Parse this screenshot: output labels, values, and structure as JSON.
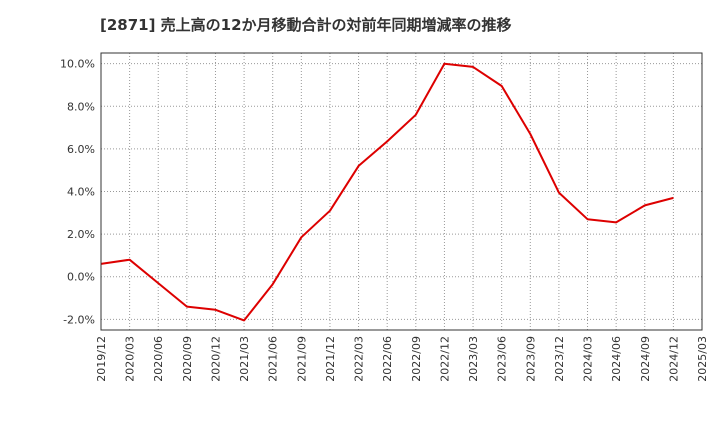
{
  "chart_data": {
    "type": "line",
    "title": "[2871]  売上高の12か月移動合計の対前年同期増減率の推移",
    "xlabel": "",
    "ylabel": "",
    "x": [
      "2019/12",
      "2020/03",
      "2020/06",
      "2020/09",
      "2020/12",
      "2021/03",
      "2021/06",
      "2021/09",
      "2021/12",
      "2022/03",
      "2022/06",
      "2022/09",
      "2022/12",
      "2023/03",
      "2023/06",
      "2023/09",
      "2023/12",
      "2024/03",
      "2024/06",
      "2024/09",
      "2024/12",
      "2025/03"
    ],
    "y_tick_values": [
      10.0,
      8.0,
      6.0,
      4.0,
      2.0,
      0.0,
      -2.0
    ],
    "y_tick_labels": [
      "10.0%",
      "8.0%",
      "6.0%",
      "4.0%",
      "2.0%",
      "0.0%",
      "-2.0%"
    ],
    "ylim": [
      -2.5,
      10.5
    ],
    "grid": true,
    "series": [
      {
        "name": "増減率",
        "color": "#dd0000",
        "values": [
          0.6,
          0.8,
          -0.3,
          -1.4,
          -1.55,
          -2.05,
          -0.35,
          1.85,
          3.1,
          5.2,
          6.35,
          7.6,
          10.0,
          9.85,
          8.95,
          6.7,
          3.95,
          2.7,
          2.55,
          3.35,
          3.7,
          null
        ]
      }
    ]
  }
}
